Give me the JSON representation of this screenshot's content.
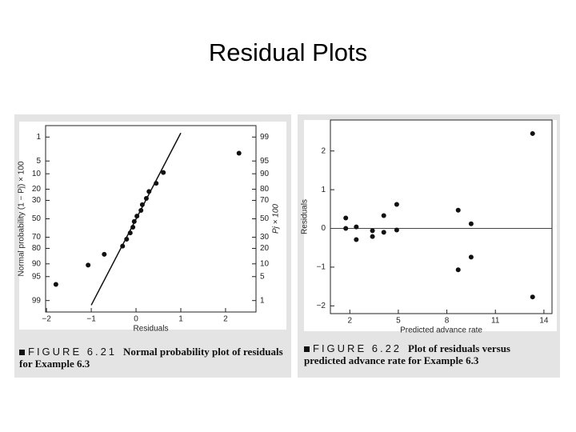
{
  "title": "Residual Plots",
  "chart_data": [
    {
      "type": "scatter",
      "yscale": "probability",
      "yreverse": true,
      "figure_label": "FIGURE 6.21",
      "caption": "Normal probability plot of residuals for Example 6.3",
      "x_label": "Residuals",
      "y_label": "Normal probability (1 − Pj) × 100",
      "y2_label": "Pj × 100",
      "color": "#111111",
      "x": [
        -1.79,
        -1.07,
        -0.71,
        -0.3,
        -0.21,
        -0.13,
        -0.07,
        -0.04,
        0.02,
        0.11,
        0.14,
        0.23,
        0.29,
        0.45,
        0.61,
        2.3
      ],
      "values": [
        96.9,
        90.6,
        84.4,
        78.1,
        71.9,
        65.6,
        59.4,
        53.1,
        46.9,
        40.6,
        34.4,
        28.1,
        21.9,
        15.6,
        9.4,
        3.1
      ],
      "fit_line": {
        "x": [
          -1,
          1
        ],
        "y": [
          99.3,
          0.73
        ]
      },
      "xlim": [
        -2.02,
        2.68
      ],
      "xticks": [
        {
          "value": -2,
          "label": "−2"
        },
        {
          "value": -1,
          "label": "−1"
        },
        0,
        1,
        2
      ],
      "ylim": [
        0.4,
        99.6
      ],
      "yticks": [
        1,
        5,
        10,
        20,
        30,
        50,
        70,
        80,
        90,
        95,
        99
      ],
      "y2lim": [
        0.4,
        99.6
      ],
      "y2ticks": [
        99,
        95,
        90,
        80,
        70,
        50,
        30,
        20,
        10,
        5,
        1
      ]
    },
    {
      "type": "scatter",
      "figure_label": "FIGURE 6.22",
      "caption": "Plot of residuals versus predicted advance rate for Example 6.3",
      "x_label": "Predicted advance rate",
      "y_label": "Residuals",
      "color": "#111111",
      "x": [
        1.75,
        1.75,
        2.4,
        2.4,
        3.4,
        3.4,
        4.1,
        4.1,
        4.9,
        4.9,
        8.7,
        8.7,
        9.5,
        9.5,
        13.3,
        13.3
      ],
      "values": [
        0.27,
        0.0,
        0.04,
        -0.29,
        -0.06,
        -0.21,
        0.33,
        -0.1,
        0.62,
        -0.04,
        0.47,
        -1.07,
        0.12,
        -0.74,
        2.45,
        -1.77
      ],
      "reference_y": 0,
      "xlim": [
        0.8,
        14.5
      ],
      "xticks": [
        2,
        5,
        8,
        11,
        14
      ],
      "ylim": [
        -2.2,
        2.8
      ],
      "yticks": [
        {
          "value": -2,
          "label": "−2"
        },
        {
          "value": -1,
          "label": "−1"
        },
        0,
        1,
        2
      ]
    }
  ]
}
